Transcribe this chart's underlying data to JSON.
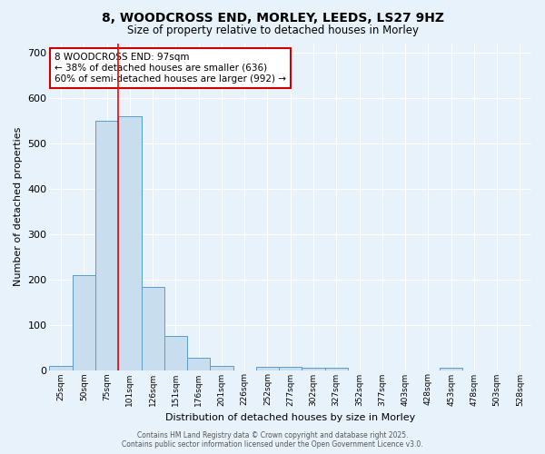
{
  "title_line1": "8, WOODCROSS END, MORLEY, LEEDS, LS27 9HZ",
  "title_line2": "Size of property relative to detached houses in Morley",
  "xlabel": "Distribution of detached houses by size in Morley",
  "ylabel": "Number of detached properties",
  "bar_labels": [
    "25sqm",
    "50sqm",
    "75sqm",
    "101sqm",
    "126sqm",
    "151sqm",
    "176sqm",
    "201sqm",
    "226sqm",
    "252sqm",
    "277sqm",
    "302sqm",
    "327sqm",
    "352sqm",
    "377sqm",
    "403sqm",
    "428sqm",
    "453sqm",
    "478sqm",
    "503sqm",
    "528sqm"
  ],
  "bar_values": [
    10,
    210,
    550,
    560,
    183,
    75,
    28,
    10,
    0,
    8,
    8,
    5,
    5,
    0,
    0,
    0,
    0,
    5,
    0,
    0,
    0
  ],
  "bar_color": "#c8dded",
  "bar_edge_color": "#5b9dc9",
  "background_color": "#e8f2fa",
  "grid_color": "#ffffff",
  "red_line_x": 2.5,
  "annotation_text": "8 WOODCROSS END: 97sqm\n← 38% of detached houses are smaller (636)\n60% of semi-detached houses are larger (992) →",
  "annotation_box_color": "#ffffff",
  "annotation_box_edge_color": "#cc0000",
  "footer_line1": "Contains HM Land Registry data © Crown copyright and database right 2025.",
  "footer_line2": "Contains public sector information licensed under the Open Government Licence v3.0.",
  "ylim": [
    0,
    720
  ],
  "yticks": [
    0,
    100,
    200,
    300,
    400,
    500,
    600,
    700
  ]
}
